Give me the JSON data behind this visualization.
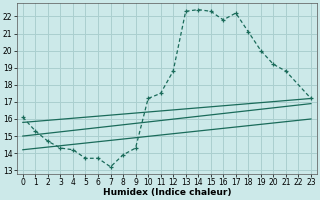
{
  "xlabel": "Humidex (Indice chaleur)",
  "bg_color": "#cce9e9",
  "grid_color": "#aacfcf",
  "line_color": "#1a6b5a",
  "xlim": [
    -0.5,
    23.5
  ],
  "ylim": [
    12.8,
    22.8
  ],
  "xticks": [
    0,
    1,
    2,
    3,
    4,
    5,
    6,
    7,
    8,
    9,
    10,
    11,
    12,
    13,
    14,
    15,
    16,
    17,
    18,
    19,
    20,
    21,
    22,
    23
  ],
  "yticks": [
    13,
    14,
    15,
    16,
    17,
    18,
    19,
    20,
    21,
    22
  ],
  "s1x": [
    0,
    1,
    2,
    3,
    4,
    5,
    6,
    7,
    8,
    9,
    10,
    11,
    12,
    13,
    14,
    15,
    16,
    17,
    18,
    19,
    20,
    21,
    23
  ],
  "s1y": [
    16.1,
    15.3,
    14.7,
    14.3,
    14.2,
    13.7,
    13.7,
    13.2,
    13.9,
    14.3,
    17.2,
    17.5,
    18.8,
    22.3,
    22.4,
    22.3,
    21.8,
    22.2,
    21.1,
    20.0,
    19.2,
    18.8,
    17.2
  ],
  "s2x": [
    0,
    23
  ],
  "s2y": [
    15.8,
    17.2
  ],
  "s3x": [
    0,
    23
  ],
  "s3y": [
    15.0,
    16.9
  ],
  "s4x": [
    0,
    23
  ],
  "s4y": [
    14.2,
    16.0
  ]
}
